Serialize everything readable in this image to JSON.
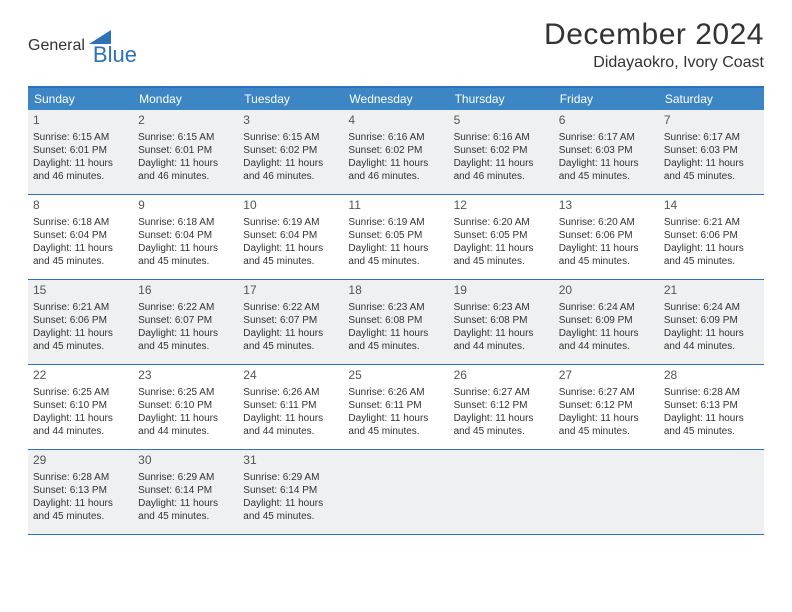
{
  "logo": {
    "text1": "General",
    "text2": "Blue"
  },
  "title": "December 2024",
  "location": "Didayaokro, Ivory Coast",
  "colors": {
    "header_bar": "#3d86c6",
    "border": "#2d72b8",
    "shaded": "#eef0f2",
    "bg": "#ffffff",
    "logo_blue": "#2d72b8",
    "text": "#333333"
  },
  "weekdays": [
    "Sunday",
    "Monday",
    "Tuesday",
    "Wednesday",
    "Thursday",
    "Friday",
    "Saturday"
  ],
  "shaded_weeks": [
    0,
    2,
    4
  ],
  "weeks": [
    [
      {
        "n": "1",
        "sr": "6:15 AM",
        "ss": "6:01 PM",
        "dl": "11 hours and 46 minutes."
      },
      {
        "n": "2",
        "sr": "6:15 AM",
        "ss": "6:01 PM",
        "dl": "11 hours and 46 minutes."
      },
      {
        "n": "3",
        "sr": "6:15 AM",
        "ss": "6:02 PM",
        "dl": "11 hours and 46 minutes."
      },
      {
        "n": "4",
        "sr": "6:16 AM",
        "ss": "6:02 PM",
        "dl": "11 hours and 46 minutes."
      },
      {
        "n": "5",
        "sr": "6:16 AM",
        "ss": "6:02 PM",
        "dl": "11 hours and 46 minutes."
      },
      {
        "n": "6",
        "sr": "6:17 AM",
        "ss": "6:03 PM",
        "dl": "11 hours and 45 minutes."
      },
      {
        "n": "7",
        "sr": "6:17 AM",
        "ss": "6:03 PM",
        "dl": "11 hours and 45 minutes."
      }
    ],
    [
      {
        "n": "8",
        "sr": "6:18 AM",
        "ss": "6:04 PM",
        "dl": "11 hours and 45 minutes."
      },
      {
        "n": "9",
        "sr": "6:18 AM",
        "ss": "6:04 PM",
        "dl": "11 hours and 45 minutes."
      },
      {
        "n": "10",
        "sr": "6:19 AM",
        "ss": "6:04 PM",
        "dl": "11 hours and 45 minutes."
      },
      {
        "n": "11",
        "sr": "6:19 AM",
        "ss": "6:05 PM",
        "dl": "11 hours and 45 minutes."
      },
      {
        "n": "12",
        "sr": "6:20 AM",
        "ss": "6:05 PM",
        "dl": "11 hours and 45 minutes."
      },
      {
        "n": "13",
        "sr": "6:20 AM",
        "ss": "6:06 PM",
        "dl": "11 hours and 45 minutes."
      },
      {
        "n": "14",
        "sr": "6:21 AM",
        "ss": "6:06 PM",
        "dl": "11 hours and 45 minutes."
      }
    ],
    [
      {
        "n": "15",
        "sr": "6:21 AM",
        "ss": "6:06 PM",
        "dl": "11 hours and 45 minutes."
      },
      {
        "n": "16",
        "sr": "6:22 AM",
        "ss": "6:07 PM",
        "dl": "11 hours and 45 minutes."
      },
      {
        "n": "17",
        "sr": "6:22 AM",
        "ss": "6:07 PM",
        "dl": "11 hours and 45 minutes."
      },
      {
        "n": "18",
        "sr": "6:23 AM",
        "ss": "6:08 PM",
        "dl": "11 hours and 45 minutes."
      },
      {
        "n": "19",
        "sr": "6:23 AM",
        "ss": "6:08 PM",
        "dl": "11 hours and 44 minutes."
      },
      {
        "n": "20",
        "sr": "6:24 AM",
        "ss": "6:09 PM",
        "dl": "11 hours and 44 minutes."
      },
      {
        "n": "21",
        "sr": "6:24 AM",
        "ss": "6:09 PM",
        "dl": "11 hours and 44 minutes."
      }
    ],
    [
      {
        "n": "22",
        "sr": "6:25 AM",
        "ss": "6:10 PM",
        "dl": "11 hours and 44 minutes."
      },
      {
        "n": "23",
        "sr": "6:25 AM",
        "ss": "6:10 PM",
        "dl": "11 hours and 44 minutes."
      },
      {
        "n": "24",
        "sr": "6:26 AM",
        "ss": "6:11 PM",
        "dl": "11 hours and 44 minutes."
      },
      {
        "n": "25",
        "sr": "6:26 AM",
        "ss": "6:11 PM",
        "dl": "11 hours and 45 minutes."
      },
      {
        "n": "26",
        "sr": "6:27 AM",
        "ss": "6:12 PM",
        "dl": "11 hours and 45 minutes."
      },
      {
        "n": "27",
        "sr": "6:27 AM",
        "ss": "6:12 PM",
        "dl": "11 hours and 45 minutes."
      },
      {
        "n": "28",
        "sr": "6:28 AM",
        "ss": "6:13 PM",
        "dl": "11 hours and 45 minutes."
      }
    ],
    [
      {
        "n": "29",
        "sr": "6:28 AM",
        "ss": "6:13 PM",
        "dl": "11 hours and 45 minutes."
      },
      {
        "n": "30",
        "sr": "6:29 AM",
        "ss": "6:14 PM",
        "dl": "11 hours and 45 minutes."
      },
      {
        "n": "31",
        "sr": "6:29 AM",
        "ss": "6:14 PM",
        "dl": "11 hours and 45 minutes."
      },
      null,
      null,
      null,
      null
    ]
  ],
  "labels": {
    "sunrise": "Sunrise:",
    "sunset": "Sunset:",
    "daylight": "Daylight:"
  }
}
